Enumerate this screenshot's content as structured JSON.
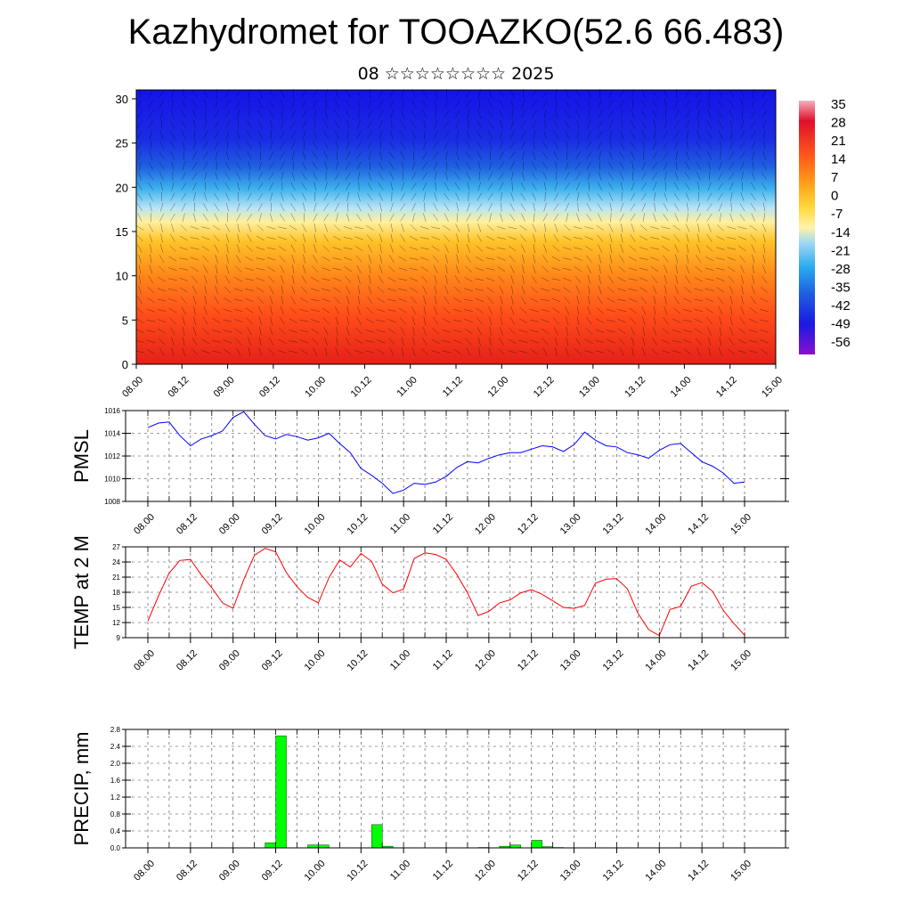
{
  "title": "Kazhydromet for TOOAZKO(52.6 66.483)",
  "subtitle": "08 ☆☆☆☆☆☆☆☆ 2025",
  "x_ticks": [
    "08.00",
    "08.12",
    "09.00",
    "09.12",
    "10.00",
    "10.12",
    "11.00",
    "11.12",
    "12.00",
    "12.12",
    "13.00",
    "13.12",
    "14.00",
    "14.12",
    "15.00"
  ],
  "chart_data": [
    {
      "type": "heatmap",
      "name": "cross-section",
      "ylim": [
        0,
        31
      ],
      "y_ticks": [
        "0",
        "5",
        "10",
        "15",
        "20",
        "25",
        "30"
      ],
      "colorbar_labels": [
        "35",
        "28",
        "21",
        "14",
        "7",
        "0",
        "-7",
        "-14",
        "-21",
        "-28",
        "-35",
        "-42",
        "-49",
        "-56"
      ],
      "colors": [
        "#f2a3b0",
        "#e0102a",
        "#ff5a1a",
        "#ffa21a",
        "#ffd83a",
        "#fff4a8",
        "#9fd8f4",
        "#28a8ee",
        "#1f5fe0",
        "#1a1ae0",
        "#7a10c8"
      ]
    },
    {
      "type": "line",
      "ylabel": "PMSL",
      "ylim": [
        1008,
        1016
      ],
      "y_ticks": [
        "1008",
        "1010",
        "1012",
        "1014",
        "1016"
      ],
      "color": "#0000ff",
      "values": [
        1014.5,
        1014.9,
        1015.0,
        1013.8,
        1012.9,
        1013.5,
        1013.8,
        1014.2,
        1015.4,
        1015.9,
        1014.8,
        1013.8,
        1013.5,
        1013.9,
        1013.7,
        1013.4,
        1013.6,
        1014.0,
        1013.1,
        1012.3,
        1010.9,
        1010.3,
        1009.6,
        1008.7,
        1009.0,
        1009.6,
        1009.5,
        1009.7,
        1010.2,
        1011.0,
        1011.5,
        1011.4,
        1011.8,
        1012.1,
        1012.3,
        1012.3,
        1012.6,
        1012.9,
        1012.8,
        1012.4,
        1013.0,
        1014.1,
        1013.4,
        1012.9,
        1012.8,
        1012.3,
        1012.1,
        1011.8,
        1012.5,
        1013.0,
        1013.1,
        1012.3,
        1011.5,
        1011.1,
        1010.5,
        1009.6,
        1009.7
      ],
      "x_start": 0,
      "x_step": 3
    },
    {
      "type": "line",
      "ylabel": "TEMP at 2 M",
      "ylim": [
        9,
        27
      ],
      "y_ticks": [
        "9",
        "12",
        "15",
        "18",
        "21",
        "24",
        "27"
      ],
      "color": "#ff0000",
      "values": [
        12.3,
        17.3,
        21.8,
        24.3,
        24.5,
        21.5,
        18.9,
        15.9,
        14.8,
        20.5,
        25.3,
        26.7,
        26.0,
        21.9,
        19.1,
        17.0,
        15.9,
        20.9,
        24.4,
        23.0,
        25.7,
        24.1,
        19.6,
        17.9,
        18.6,
        24.7,
        25.8,
        25.5,
        24.5,
        21.5,
        17.9,
        13.4,
        14.2,
        15.9,
        16.5,
        17.9,
        18.5,
        17.6,
        16.3,
        15.0,
        14.8,
        15.4,
        19.8,
        20.6,
        20.7,
        18.7,
        13.8,
        10.6,
        9.4,
        14.6,
        15.2,
        19.2,
        19.9,
        18.2,
        14.4,
        11.8,
        9.5
      ],
      "x_start": 0,
      "x_step": 3
    },
    {
      "type": "bar",
      "ylabel": "PRECIP, mm",
      "ylim": [
        0,
        2.8
      ],
      "y_ticks": [
        "0.0",
        "0.4",
        "0.8",
        "1.2",
        "1.6",
        "2.0",
        "2.4",
        "2.8"
      ],
      "color": "#00ff00",
      "bars": [
        {
          "x": 36,
          "value": 0.12
        },
        {
          "x": 39,
          "value": 2.65
        },
        {
          "x": 48,
          "value": 0.07
        },
        {
          "x": 51,
          "value": 0.07
        },
        {
          "x": 66,
          "value": 0.55
        },
        {
          "x": 69,
          "value": 0.04
        },
        {
          "x": 96,
          "value": 0.01
        },
        {
          "x": 102,
          "value": 0.04
        },
        {
          "x": 105,
          "value": 0.07
        },
        {
          "x": 111,
          "value": 0.18
        },
        {
          "x": 114,
          "value": 0.03
        },
        {
          "x": 117,
          "value": 0.01
        }
      ]
    }
  ]
}
